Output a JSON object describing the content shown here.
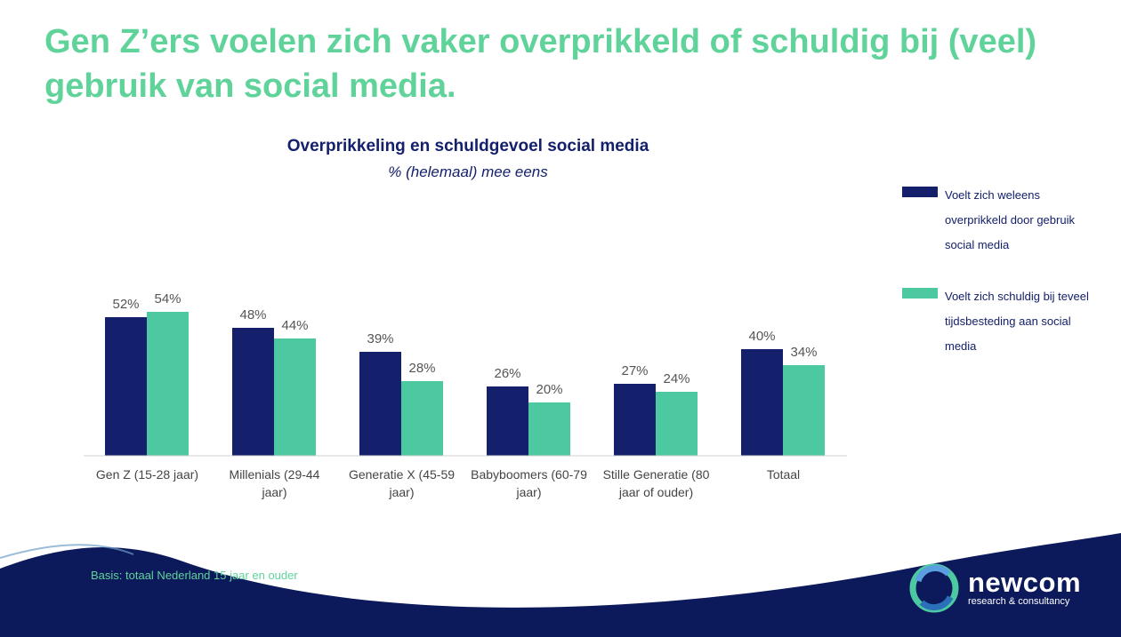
{
  "headline": "Gen Z’ers voelen zich vaker overprikkeld of schuldig bij (veel) gebruik van social media.",
  "basis": "Basis: totaal Nederland 15 jaar en ouder",
  "logo": {
    "name": "newcom",
    "tagline": "research & consultancy",
    "icon": "newcom-logo-icon"
  },
  "colors": {
    "series1": "#14206b",
    "series2": "#4cc9a0",
    "headline": "#5fd39a",
    "footer": "#0c1a5c"
  },
  "chart_data": {
    "type": "bar",
    "title": "Overprikkeling en schuldgevoel social media",
    "subtitle": "% (helemaal) mee eens",
    "categories": [
      [
        "Gen Z (15-28 jaar)"
      ],
      [
        "Millenials (29-44",
        "jaar)"
      ],
      [
        "Generatie X (45-59",
        "jaar)"
      ],
      [
        "Babyboomers (60-79",
        "jaar)"
      ],
      [
        "Stille Generatie (80",
        "jaar of ouder)"
      ],
      [
        "Totaal"
      ]
    ],
    "series": [
      {
        "name": "Voelt zich weleens overprikkeld door gebruik social media",
        "values": [
          52,
          48,
          39,
          26,
          27,
          40
        ]
      },
      {
        "name": "Voelt zich schuldig bij teveel tijdsbesteding aan social media",
        "values": [
          54,
          44,
          28,
          20,
          24,
          34
        ]
      }
    ],
    "value_suffix": "%",
    "ylim": [
      0,
      60
    ],
    "grid": false,
    "legend": "right",
    "legend_lines": [
      [
        "Voelt zich weleens",
        "overprikkeld door gebruik",
        "social media"
      ],
      [
        "Voelt zich schuldig bij teveel",
        "tijdsbesteding aan social",
        "media"
      ]
    ]
  }
}
